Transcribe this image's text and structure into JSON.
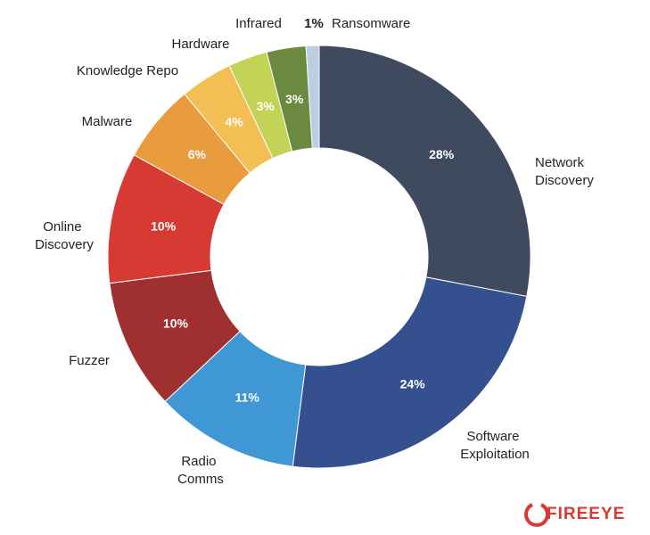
{
  "chart_data": {
    "type": "donut",
    "categories": [
      "Network Discovery",
      "Software Exploitation",
      "Radio Comms",
      "Fuzzer",
      "Online Discovery",
      "Malware",
      "Knowledge Repo",
      "Hardware",
      "Infrared",
      "Ransomware"
    ],
    "values": [
      28,
      24,
      11,
      10,
      10,
      6,
      4,
      3,
      3,
      1
    ],
    "value_labels": [
      "28%",
      "24%",
      "11%",
      "10%",
      "10%",
      "6%",
      "4%",
      "3%",
      "3%",
      "1%"
    ],
    "colors": [
      "#3f4a5e",
      "#34508f",
      "#3f97d3",
      "#a03030",
      "#d63a32",
      "#ea9b3e",
      "#f3bf55",
      "#c2d356",
      "#6b8a3f",
      "#b9cde3"
    ]
  },
  "logo": "FIREEYE"
}
